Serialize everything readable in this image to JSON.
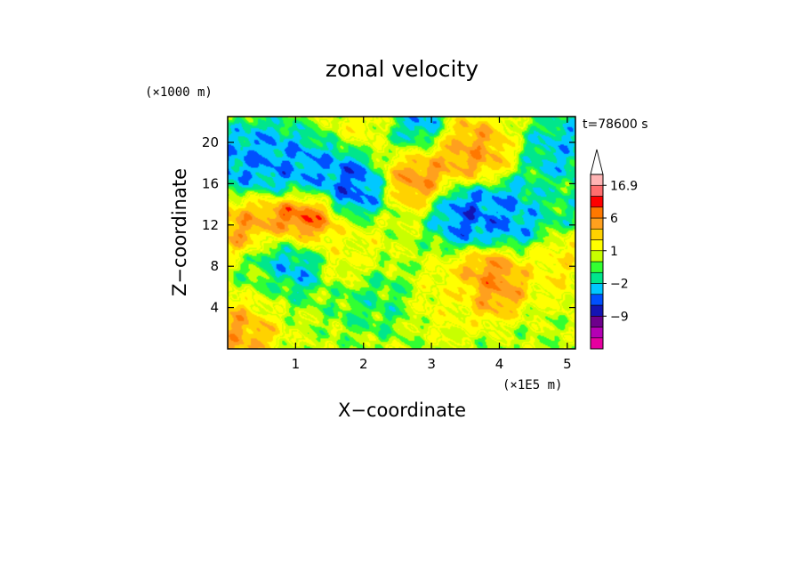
{
  "chart_data": {
    "type": "heatmap",
    "title": "zonal velocity",
    "xlabel": "X−coordinate",
    "ylabel": "Z−coordinate",
    "x_unit": "(×1E5 m)",
    "y_unit": "(×1000 m)",
    "time_label": "t=78600 s",
    "xlim": [
      0,
      5.12
    ],
    "ylim": [
      0,
      22.5
    ],
    "xticks": [
      1,
      2,
      3,
      4,
      5
    ],
    "yticks": [
      4,
      8,
      12,
      16,
      20
    ],
    "colorbar": {
      "colors": [
        "#e600a0",
        "#b400b4",
        "#6e008c",
        "#1414b4",
        "#0050ff",
        "#00c8ff",
        "#00e68c",
        "#32ff32",
        "#c8ff00",
        "#ffff00",
        "#ffd200",
        "#ffa01e",
        "#ff7800",
        "#ff0000",
        "#ff6e6e",
        "#ffb4b4"
      ],
      "tick_labels": [
        {
          "label": "16.9",
          "level": 15
        },
        {
          "label": "6",
          "level": 12
        },
        {
          "label": "1",
          "level": 9
        },
        {
          "label": "−2",
          "level": 6
        },
        {
          "label": "−9",
          "level": 3
        }
      ],
      "extend_max": true
    },
    "field_features": [
      {
        "x": 3.3,
        "z": 5,
        "value": 2
      },
      {
        "x": 1.8,
        "z": 9,
        "value": 2
      },
      {
        "x": 0.5,
        "z": 6,
        "value": -1
      },
      {
        "x": 2.2,
        "z": 21.5,
        "value": 3
      },
      {
        "x": 0.22,
        "z": 12.5,
        "value": 6
      },
      {
        "x": 0.2,
        "z": 2.5,
        "value": 6
      },
      {
        "x": 2.75,
        "z": 17.5,
        "value": 7
      },
      {
        "x": 3.6,
        "z": 19,
        "value": 6
      },
      {
        "x": 3.85,
        "z": 6.5,
        "value": 7
      },
      {
        "x": 0.5,
        "z": 18.5,
        "value": -5
      },
      {
        "x": 1.05,
        "z": 17.2,
        "value": -5
      },
      {
        "x": 1.85,
        "z": 16.3,
        "value": -6
      },
      {
        "x": 2.65,
        "z": 21,
        "value": -6
      },
      {
        "x": 3.6,
        "z": 13,
        "value": -6
      },
      {
        "x": 4.25,
        "z": 13,
        "value": -5
      },
      {
        "x": 0.95,
        "z": 9,
        "value": -6
      },
      {
        "x": 0.1,
        "z": 17,
        "value": -5
      },
      {
        "x": 4.95,
        "z": 19,
        "value": -4
      },
      {
        "x": 2.1,
        "z": 5,
        "value": -2
      },
      {
        "x": 4.8,
        "z": 14,
        "value": -2
      },
      {
        "x": 1.05,
        "z": 12,
        "value": 10
      },
      {
        "x": 4.9,
        "z": 8,
        "value": 3
      }
    ]
  }
}
